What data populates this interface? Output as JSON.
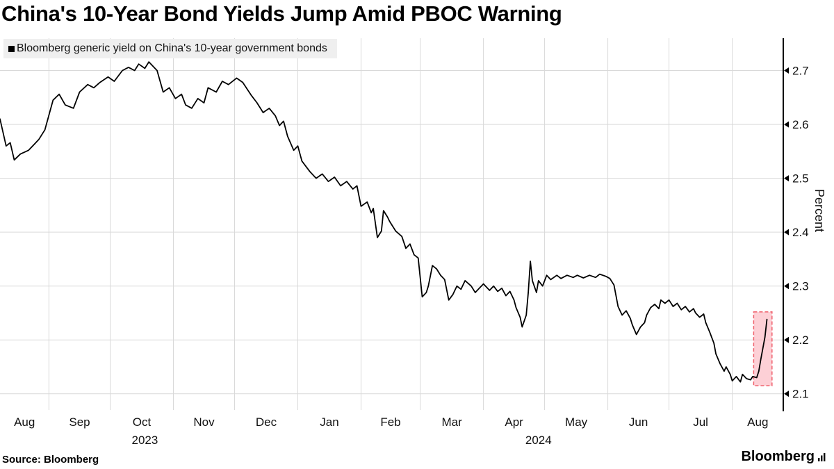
{
  "chart": {
    "title": "China's 10-Year Bond Yields Jump Amid PBOC Warning",
    "legend": "Bloomberg generic yield on China's 10-year government bonds"
  },
  "footer": {
    "source": "Source: Bloomberg",
    "logo": "Bloomberg"
  },
  "colors": {
    "line": "#000000",
    "highlight_fill": "#fcb7c0",
    "highlight_stroke": "#ef5f6b",
    "grid": "#d9d9d9",
    "axis": "#000000",
    "legend_bg": "#efefef"
  },
  "chart_data": {
    "type": "line",
    "title": "China's 10-Year Bond Yields Jump Amid PBOC Warning",
    "series_name": "Bloomberg generic yield on China's 10-year government bonds",
    "ylabel": "Percent",
    "xlabel": "",
    "grid": true,
    "legend_position": "top-left",
    "x_unit": "days since x_start_date",
    "x_start_date": "2023-08-08",
    "x_axis_days": [
      0,
      384
    ],
    "ylim": [
      2.07,
      2.76
    ],
    "y_ticks": [
      2.1,
      2.2,
      2.3,
      2.4,
      2.5,
      2.6,
      2.7
    ],
    "x_tick_labels": [
      "Aug",
      "Sep",
      "Oct",
      "Nov",
      "Dec",
      "Jan",
      "Feb",
      "Mar",
      "Apr",
      "May",
      "Jun",
      "Jul",
      "Aug"
    ],
    "month_boundary_days": [
      24,
      54,
      85,
      115,
      146,
      177,
      206,
      237,
      267,
      298,
      328,
      359
    ],
    "year_labels": [
      {
        "text": "2023",
        "day": 71
      },
      {
        "text": "2024",
        "day": 264
      }
    ],
    "highlight": {
      "day_start": 369.5,
      "day_end": 378.5,
      "value_min": 2.115,
      "value_max": 2.252,
      "meaning": "recent jump in yields highlighted"
    },
    "points": [
      [
        0,
        2.61
      ],
      [
        3,
        2.56
      ],
      [
        5,
        2.566
      ],
      [
        7,
        2.534
      ],
      [
        10,
        2.545
      ],
      [
        14,
        2.552
      ],
      [
        16,
        2.56
      ],
      [
        19,
        2.572
      ],
      [
        22,
        2.59
      ],
      [
        26,
        2.645
      ],
      [
        29,
        2.656
      ],
      [
        32,
        2.636
      ],
      [
        36,
        2.63
      ],
      [
        39,
        2.66
      ],
      [
        43,
        2.674
      ],
      [
        46,
        2.668
      ],
      [
        49,
        2.678
      ],
      [
        53,
        2.688
      ],
      [
        56,
        2.68
      ],
      [
        60,
        2.7
      ],
      [
        63,
        2.706
      ],
      [
        66,
        2.7
      ],
      [
        68,
        2.712
      ],
      [
        71,
        2.704
      ],
      [
        73,
        2.716
      ],
      [
        77,
        2.7
      ],
      [
        80,
        2.66
      ],
      [
        83,
        2.668
      ],
      [
        86,
        2.648
      ],
      [
        89,
        2.656
      ],
      [
        91,
        2.636
      ],
      [
        94,
        2.63
      ],
      [
        97,
        2.648
      ],
      [
        100,
        2.64
      ],
      [
        102,
        2.668
      ],
      [
        106,
        2.66
      ],
      [
        109,
        2.68
      ],
      [
        112,
        2.674
      ],
      [
        116,
        2.686
      ],
      [
        119,
        2.678
      ],
      [
        123,
        2.655
      ],
      [
        126,
        2.64
      ],
      [
        129,
        2.622
      ],
      [
        132,
        2.63
      ],
      [
        135,
        2.616
      ],
      [
        137,
        2.598
      ],
      [
        139,
        2.606
      ],
      [
        141,
        2.578
      ],
      [
        144,
        2.552
      ],
      [
        146,
        2.56
      ],
      [
        148,
        2.532
      ],
      [
        152,
        2.512
      ],
      [
        155,
        2.5
      ],
      [
        158,
        2.508
      ],
      [
        161,
        2.494
      ],
      [
        164,
        2.502
      ],
      [
        167,
        2.486
      ],
      [
        170,
        2.494
      ],
      [
        173,
        2.48
      ],
      [
        175,
        2.486
      ],
      [
        177,
        2.448
      ],
      [
        180,
        2.456
      ],
      [
        182,
        2.436
      ],
      [
        183,
        2.444
      ],
      [
        185,
        2.39
      ],
      [
        187,
        2.402
      ],
      [
        188,
        2.44
      ],
      [
        190,
        2.428
      ],
      [
        191,
        2.42
      ],
      [
        194,
        2.402
      ],
      [
        197,
        2.392
      ],
      [
        199,
        2.37
      ],
      [
        201,
        2.378
      ],
      [
        203,
        2.358
      ],
      [
        205,
        2.352
      ],
      [
        207,
        2.28
      ],
      [
        209,
        2.288
      ],
      [
        210,
        2.3
      ],
      [
        212,
        2.338
      ],
      [
        214,
        2.332
      ],
      [
        216,
        2.32
      ],
      [
        218,
        2.312
      ],
      [
        220,
        2.274
      ],
      [
        222,
        2.284
      ],
      [
        224,
        2.3
      ],
      [
        226,
        2.294
      ],
      [
        228,
        2.31
      ],
      [
        231,
        2.3
      ],
      [
        233,
        2.288
      ],
      [
        235,
        2.296
      ],
      [
        237,
        2.304
      ],
      [
        240,
        2.292
      ],
      [
        242,
        2.3
      ],
      [
        244,
        2.29
      ],
      [
        246,
        2.296
      ],
      [
        248,
        2.282
      ],
      [
        250,
        2.29
      ],
      [
        252,
        2.274
      ],
      [
        253,
        2.26
      ],
      [
        255,
        2.242
      ],
      [
        256,
        2.224
      ],
      [
        258,
        2.246
      ],
      [
        259,
        2.288
      ],
      [
        260,
        2.346
      ],
      [
        261,
        2.31
      ],
      [
        263,
        2.288
      ],
      [
        264,
        2.31
      ],
      [
        266,
        2.3
      ],
      [
        268,
        2.32
      ],
      [
        270,
        2.312
      ],
      [
        273,
        2.32
      ],
      [
        275,
        2.314
      ],
      [
        278,
        2.32
      ],
      [
        281,
        2.316
      ],
      [
        283,
        2.32
      ],
      [
        286,
        2.315
      ],
      [
        289,
        2.32
      ],
      [
        292,
        2.316
      ],
      [
        294,
        2.322
      ],
      [
        297,
        2.318
      ],
      [
        299,
        2.314
      ],
      [
        301,
        2.302
      ],
      [
        303,
        2.262
      ],
      [
        305,
        2.246
      ],
      [
        307,
        2.254
      ],
      [
        309,
        2.24
      ],
      [
        310,
        2.228
      ],
      [
        312,
        2.21
      ],
      [
        314,
        2.224
      ],
      [
        316,
        2.232
      ],
      [
        317,
        2.246
      ],
      [
        319,
        2.26
      ],
      [
        321,
        2.266
      ],
      [
        323,
        2.258
      ],
      [
        324,
        2.274
      ],
      [
        326,
        2.268
      ],
      [
        328,
        2.274
      ],
      [
        330,
        2.262
      ],
      [
        332,
        2.268
      ],
      [
        334,
        2.256
      ],
      [
        336,
        2.262
      ],
      [
        338,
        2.252
      ],
      [
        340,
        2.258
      ],
      [
        341,
        2.25
      ],
      [
        343,
        2.242
      ],
      [
        345,
        2.248
      ],
      [
        346,
        2.232
      ],
      [
        348,
        2.214
      ],
      [
        350,
        2.194
      ],
      [
        351,
        2.174
      ],
      [
        353,
        2.156
      ],
      [
        355,
        2.142
      ],
      [
        356,
        2.15
      ],
      [
        358,
        2.136
      ],
      [
        359,
        2.124
      ],
      [
        361,
        2.132
      ],
      [
        363,
        2.122
      ],
      [
        364,
        2.136
      ],
      [
        366,
        2.128
      ],
      [
        368,
        2.126
      ],
      [
        369,
        2.132
      ],
      [
        371,
        2.13
      ],
      [
        372,
        2.142
      ],
      [
        373,
        2.164
      ],
      [
        375,
        2.205
      ],
      [
        376,
        2.238
      ]
    ]
  }
}
